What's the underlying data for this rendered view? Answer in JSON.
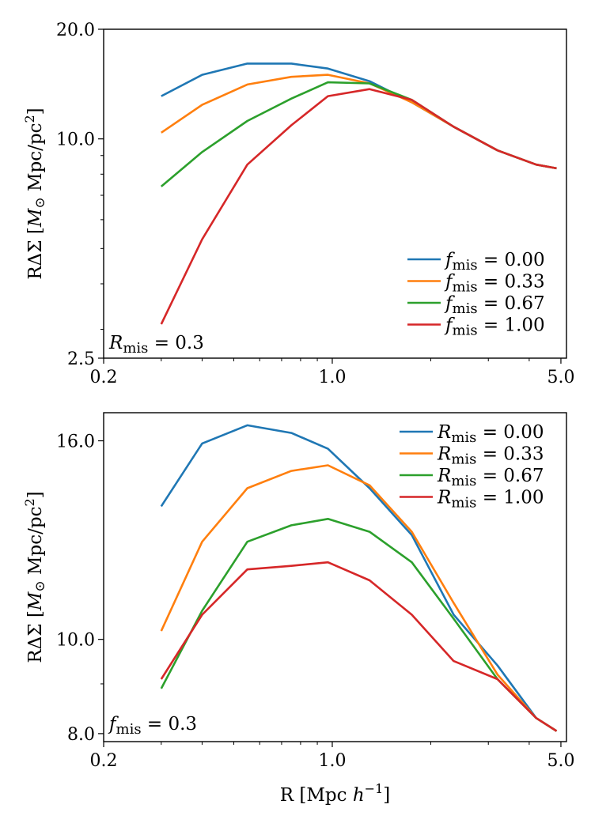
{
  "chart_data": [
    {
      "type": "line",
      "panel": "top",
      "xscale": "log",
      "yscale": "log",
      "xlim": [
        0.2,
        5.2
      ],
      "ylim": [
        2.5,
        20.0
      ],
      "xticks": [
        0.2,
        1.0,
        5.0
      ],
      "xtick_labels": [
        "0.2",
        "1.0",
        "5.0"
      ],
      "yticks": [
        2.5,
        10.0,
        20.0
      ],
      "ytick_labels": [
        "2.5",
        "10.0",
        "20.0"
      ],
      "xlabel": "",
      "ylabel": "RΔΣ [M⊙ Mpc/pc²]",
      "legend_loc": "lower-right",
      "annotation": "R_mis = 0.3",
      "x": [
        0.3,
        0.4,
        0.55,
        0.75,
        0.97,
        1.3,
        1.75,
        2.35,
        3.2,
        4.2,
        4.85
      ],
      "series": [
        {
          "name": "f_mis = 0.00",
          "color": "#1f77b4",
          "values": [
            13.1,
            15.0,
            16.1,
            16.1,
            15.6,
            14.4,
            12.6,
            10.8,
            9.3,
            8.5,
            8.3
          ]
        },
        {
          "name": "f_mis = 0.33",
          "color": "#ff7f0e",
          "values": [
            10.4,
            12.4,
            14.1,
            14.8,
            15.0,
            14.2,
            12.6,
            10.8,
            9.3,
            8.5,
            8.3
          ]
        },
        {
          "name": "f_mis = 0.67",
          "color": "#2ca02c",
          "values": [
            7.4,
            9.2,
            11.2,
            12.9,
            14.3,
            14.2,
            12.8,
            10.8,
            9.3,
            8.5,
            8.3
          ]
        },
        {
          "name": "f_mis = 1.00",
          "color": "#d62728",
          "values": [
            3.1,
            5.3,
            8.5,
            10.9,
            13.1,
            13.7,
            12.8,
            10.8,
            9.3,
            8.5,
            8.3
          ]
        }
      ]
    },
    {
      "type": "line",
      "panel": "bottom",
      "xscale": "log",
      "yscale": "log",
      "xlim": [
        0.2,
        5.2
      ],
      "ylim": [
        7.85,
        17.1
      ],
      "xticks": [
        0.2,
        1.0,
        5.0
      ],
      "xtick_labels": [
        "0.2",
        "1.0",
        "5.0"
      ],
      "yticks": [
        8.0,
        10.0,
        16.0
      ],
      "ytick_labels": [
        "8.0",
        "10.0",
        "16.0"
      ],
      "xlabel": "R [Mpc h⁻¹]",
      "ylabel": "RΔΣ [M⊙ Mpc/pc²]",
      "legend_loc": "upper-right",
      "annotation": "f_mis = 0.3",
      "x": [
        0.3,
        0.4,
        0.55,
        0.75,
        0.97,
        1.3,
        1.75,
        2.35,
        3.2,
        4.2,
        4.85
      ],
      "series": [
        {
          "name": "R_mis = 0.00",
          "color": "#1f77b4",
          "values": [
            13.7,
            15.9,
            16.6,
            16.3,
            15.7,
            14.3,
            12.8,
            10.6,
            9.4,
            8.3,
            8.05
          ]
        },
        {
          "name": "R_mis = 0.33",
          "color": "#ff7f0e",
          "values": [
            10.2,
            12.6,
            14.3,
            14.9,
            15.1,
            14.4,
            12.9,
            10.9,
            9.2,
            8.3,
            8.05
          ]
        },
        {
          "name": "R_mis = 0.67",
          "color": "#2ca02c",
          "values": [
            8.9,
            10.7,
            12.6,
            13.1,
            13.3,
            12.9,
            12.0,
            10.5,
            9.1,
            8.3,
            8.05
          ]
        },
        {
          "name": "R_mis = 1.00",
          "color": "#d62728",
          "values": [
            9.1,
            10.6,
            11.8,
            11.9,
            12.0,
            11.5,
            10.6,
            9.5,
            9.1,
            8.3,
            8.05
          ]
        }
      ]
    }
  ]
}
